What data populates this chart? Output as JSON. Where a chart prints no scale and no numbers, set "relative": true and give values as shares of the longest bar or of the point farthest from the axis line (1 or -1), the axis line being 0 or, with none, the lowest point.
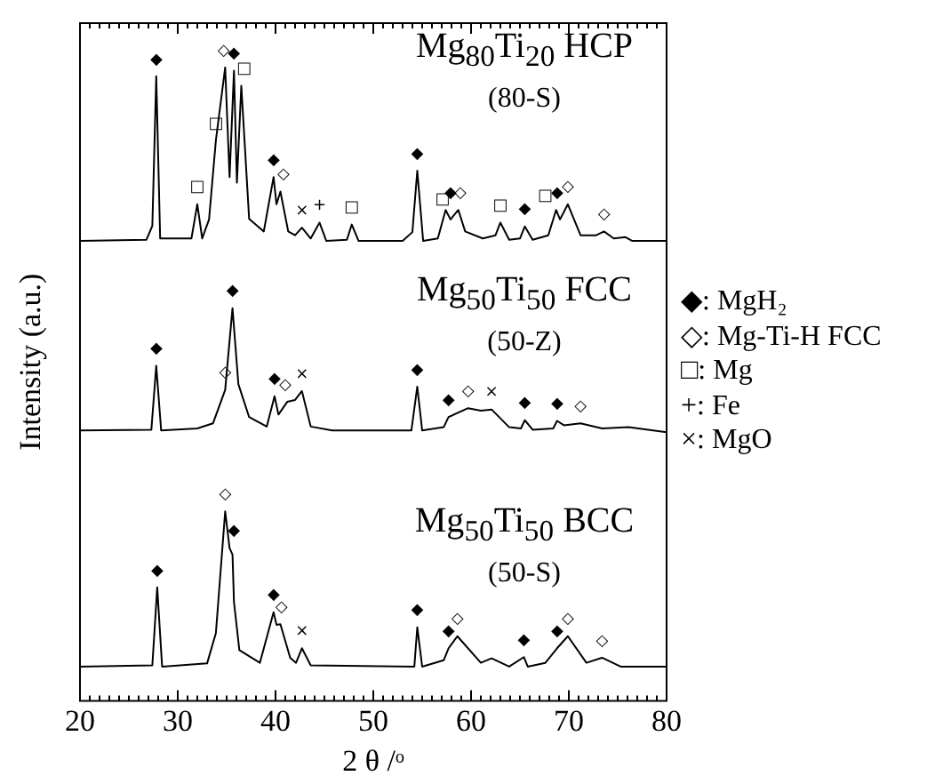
{
  "chart_data": {
    "type": "line",
    "relative": true,
    "xlabel": "2 θ /ᵒ",
    "ylabel": "Intensity (a.u.)",
    "xlim": [
      20,
      80
    ],
    "xticks": [
      20,
      {
        "value": 21,
        "label": null
      },
      {
        "value": 22,
        "label": null
      },
      {
        "value": 23,
        "label": null
      },
      {
        "value": 24,
        "label": null
      },
      {
        "value": 25,
        "label": null
      },
      {
        "value": 26,
        "label": null
      },
      {
        "value": 27,
        "label": null
      },
      {
        "value": 28,
        "label": null
      },
      {
        "value": 29,
        "label": null
      },
      30,
      {
        "value": 31,
        "label": null
      },
      {
        "value": 32,
        "label": null
      },
      {
        "value": 33,
        "label": null
      },
      {
        "value": 34,
        "label": null
      },
      {
        "value": 35,
        "label": null
      },
      {
        "value": 36,
        "label": null
      },
      {
        "value": 37,
        "label": null
      },
      {
        "value": 38,
        "label": null
      },
      {
        "value": 39,
        "label": null
      },
      40,
      {
        "value": 41,
        "label": null
      },
      {
        "value": 42,
        "label": null
      },
      {
        "value": 43,
        "label": null
      },
      {
        "value": 44,
        "label": null
      },
      {
        "value": 45,
        "label": null
      },
      {
        "value": 46,
        "label": null
      },
      {
        "value": 47,
        "label": null
      },
      {
        "value": 48,
        "label": null
      },
      {
        "value": 49,
        "label": null
      },
      50,
      {
        "value": 51,
        "label": null
      },
      {
        "value": 52,
        "label": null
      },
      {
        "value": 53,
        "label": null
      },
      {
        "value": 54,
        "label": null
      },
      {
        "value": 55,
        "label": null
      },
      {
        "value": 56,
        "label": null
      },
      {
        "value": 57,
        "label": null
      },
      {
        "value": 58,
        "label": null
      },
      {
        "value": 59,
        "label": null
      },
      60,
      {
        "value": 61,
        "label": null
      },
      {
        "value": 62,
        "label": null
      },
      {
        "value": 63,
        "label": null
      },
      {
        "value": 64,
        "label": null
      },
      {
        "value": 65,
        "label": null
      },
      {
        "value": 66,
        "label": null
      },
      {
        "value": 67,
        "label": null
      },
      {
        "value": 68,
        "label": null
      },
      {
        "value": 69,
        "label": null
      },
      70,
      {
        "value": 71,
        "label": null
      },
      {
        "value": 72,
        "label": null
      },
      {
        "value": 73,
        "label": null
      },
      {
        "value": 74,
        "label": null
      },
      {
        "value": 75,
        "label": null
      },
      {
        "value": 76,
        "label": null
      },
      {
        "value": 77,
        "label": null
      },
      {
        "value": 78,
        "label": null
      },
      {
        "value": 79,
        "label": null
      },
      80
    ],
    "grid": false,
    "legend": "top right",
    "marker": "none",
    "series": [
      {
        "name": "Mg$_{80}$Ti$_{20}$ HCP (80-S)",
        "color": "#000000",
        "x": [
          20,
          26.8,
          27.4,
          27.8,
          28.2,
          31.4,
          32.0,
          32.5,
          33.2,
          33.9,
          34.85,
          35.3,
          35.75,
          36.05,
          36.5,
          37.3,
          38.8,
          39.8,
          40.1,
          40.5,
          41.3,
          42.0,
          42.7,
          43.6,
          44.5,
          45.2,
          47.3,
          47.8,
          48.5,
          53.0,
          54.0,
          54.5,
          55.1,
          56.6,
          57.4,
          57.9,
          58.7,
          59.4,
          61.2,
          62.5,
          63.0,
          63.9,
          65.0,
          65.5,
          66.3,
          67.9,
          68.7,
          69.1,
          69.9,
          71.2,
          72.8,
          73.6,
          74.6,
          75.8,
          76.5,
          80
        ],
        "values": [
          0.726,
          0.728,
          0.75,
          0.986,
          0.73,
          0.73,
          0.784,
          0.73,
          0.76,
          0.885,
          1.0,
          0.827,
          0.995,
          0.818,
          0.971,
          0.761,
          0.741,
          0.827,
          0.784,
          0.804,
          0.741,
          0.735,
          0.747,
          0.73,
          0.755,
          0.726,
          0.728,
          0.752,
          0.726,
          0.726,
          0.74,
          0.837,
          0.726,
          0.73,
          0.775,
          0.76,
          0.775,
          0.741,
          0.73,
          0.735,
          0.755,
          0.728,
          0.73,
          0.749,
          0.728,
          0.735,
          0.775,
          0.76,
          0.784,
          0.735,
          0.735,
          0.741,
          0.73,
          0.732,
          0.726,
          0.726
        ]
      },
      {
        "name": "Mg$_{50}$Ti$_{50}$ FCC (50-Z)",
        "color": "#000000",
        "x": [
          20,
          27.3,
          27.8,
          28.3,
          32,
          33.6,
          34.85,
          35.6,
          36.2,
          37.3,
          39.1,
          39.9,
          40.3,
          41.2,
          42.0,
          42.7,
          43.6,
          45.8,
          53.9,
          54.5,
          55.0,
          57.2,
          57.7,
          59.7,
          61.0,
          62.1,
          63.9,
          65.1,
          65.5,
          66.3,
          68.4,
          68.8,
          69.5,
          71.2,
          73.4,
          76.1,
          80
        ],
        "values": [
          0.427,
          0.428,
          0.529,
          0.427,
          0.43,
          0.438,
          0.491,
          0.62,
          0.5,
          0.448,
          0.433,
          0.481,
          0.452,
          0.472,
          0.475,
          0.489,
          0.433,
          0.427,
          0.427,
          0.496,
          0.427,
          0.432,
          0.448,
          0.462,
          0.458,
          0.46,
          0.432,
          0.43,
          0.443,
          0.428,
          0.43,
          0.442,
          0.435,
          0.438,
          0.43,
          0.432,
          0.424
        ]
      },
      {
        "name": "Mg$_{50}$Ti$_{50}$ BCC (50-S)",
        "color": "#000000",
        "x": [
          20,
          27.4,
          27.9,
          28.4,
          33.0,
          33.9,
          34.85,
          35.3,
          35.6,
          35.75,
          36.3,
          38.4,
          39.8,
          40.1,
          40.5,
          41.5,
          42.1,
          42.7,
          43.6,
          54.2,
          54.5,
          55.0,
          57.2,
          57.7,
          58.6,
          61.0,
          62.1,
          63.9,
          65.4,
          65.8,
          67.6,
          68.8,
          69.9,
          71.8,
          73.4,
          75.3,
          80
        ],
        "values": [
          0.054,
          0.056,
          0.179,
          0.054,
          0.059,
          0.107,
          0.299,
          0.241,
          0.231,
          0.156,
          0.08,
          0.06,
          0.14,
          0.12,
          0.121,
          0.068,
          0.06,
          0.083,
          0.056,
          0.054,
          0.116,
          0.054,
          0.064,
          0.083,
          0.102,
          0.06,
          0.067,
          0.054,
          0.069,
          0.054,
          0.06,
          0.083,
          0.102,
          0.06,
          0.068,
          0.054,
          0.054
        ]
      }
    ],
    "annotations": [
      "◆: MgH₂",
      "◇: Mg-Ti-H FCC",
      "□: Mg",
      "+: Fe",
      "×: MgO",
      {
        "text": "◆",
        "x": 27.8,
        "y": 0.986
      },
      {
        "text": "□",
        "x": 32.0,
        "y": 0.784
      },
      {
        "text": "□",
        "x": 33.9,
        "y": 0.885
      },
      {
        "text": "◇",
        "x": 34.7,
        "y": 1.0
      },
      {
        "text": "◆",
        "x": 35.75,
        "y": 0.995
      },
      {
        "text": "□",
        "x": 36.8,
        "y": 0.971
      },
      {
        "text": "◆",
        "x": 39.8,
        "y": 0.827
      },
      {
        "text": "◇",
        "x": 40.8,
        "y": 0.804
      },
      {
        "text": "×",
        "x": 42.7,
        "y": 0.747
      },
      {
        "text": "+",
        "x": 44.5,
        "y": 0.755
      },
      {
        "text": "□",
        "x": 47.8,
        "y": 0.752
      },
      {
        "text": "◆",
        "x": 54.5,
        "y": 0.837
      },
      {
        "text": "□",
        "x": 57.1,
        "y": 0.765
      },
      {
        "text": "◆",
        "x": 57.9,
        "y": 0.775
      },
      {
        "text": "◇",
        "x": 58.9,
        "y": 0.775
      },
      {
        "text": "□",
        "x": 63.0,
        "y": 0.755
      },
      {
        "text": "◆",
        "x": 65.5,
        "y": 0.749
      },
      {
        "text": "□",
        "x": 67.6,
        "y": 0.77
      },
      {
        "text": "◆",
        "x": 68.8,
        "y": 0.775
      },
      {
        "text": "◇",
        "x": 69.9,
        "y": 0.784
      },
      {
        "text": "◇",
        "x": 73.6,
        "y": 0.741
      },
      {
        "text": "◆",
        "x": 27.8,
        "y": 0.529
      },
      {
        "text": "◇",
        "x": 34.85,
        "y": 0.491
      },
      {
        "text": "◆",
        "x": 35.6,
        "y": 0.62
      },
      {
        "text": "◆",
        "x": 39.9,
        "y": 0.481
      },
      {
        "text": "◇",
        "x": 41.0,
        "y": 0.472
      },
      {
        "text": "×",
        "x": 42.7,
        "y": 0.489
      },
      {
        "text": "◆",
        "x": 54.5,
        "y": 0.496
      },
      {
        "text": "◆",
        "x": 57.7,
        "y": 0.448
      },
      {
        "text": "◇",
        "x": 59.7,
        "y": 0.462
      },
      {
        "text": "×",
        "x": 62.1,
        "y": 0.46
      },
      {
        "text": "◆",
        "x": 65.5,
        "y": 0.443
      },
      {
        "text": "◆",
        "x": 68.8,
        "y": 0.442
      },
      {
        "text": "◇",
        "x": 71.2,
        "y": 0.438
      },
      {
        "text": "◆",
        "x": 27.9,
        "y": 0.179
      },
      {
        "text": "◇",
        "x": 34.85,
        "y": 0.299
      },
      {
        "text": "◆",
        "x": 35.75,
        "y": 0.241
      },
      {
        "text": "◆",
        "x": 39.8,
        "y": 0.14
      },
      {
        "text": "◇",
        "x": 40.6,
        "y": 0.121
      },
      {
        "text": "×",
        "x": 42.7,
        "y": 0.083
      },
      {
        "text": "◆",
        "x": 54.5,
        "y": 0.116
      },
      {
        "text": "◆",
        "x": 57.7,
        "y": 0.083
      },
      {
        "text": "◇",
        "x": 58.6,
        "y": 0.102
      },
      {
        "text": "◆",
        "x": 65.4,
        "y": 0.069
      },
      {
        "text": "◆",
        "x": 68.8,
        "y": 0.083
      },
      {
        "text": "◇",
        "x": 69.9,
        "y": 0.102
      },
      {
        "text": "◇",
        "x": 73.4,
        "y": 0.068
      }
    ]
  }
}
